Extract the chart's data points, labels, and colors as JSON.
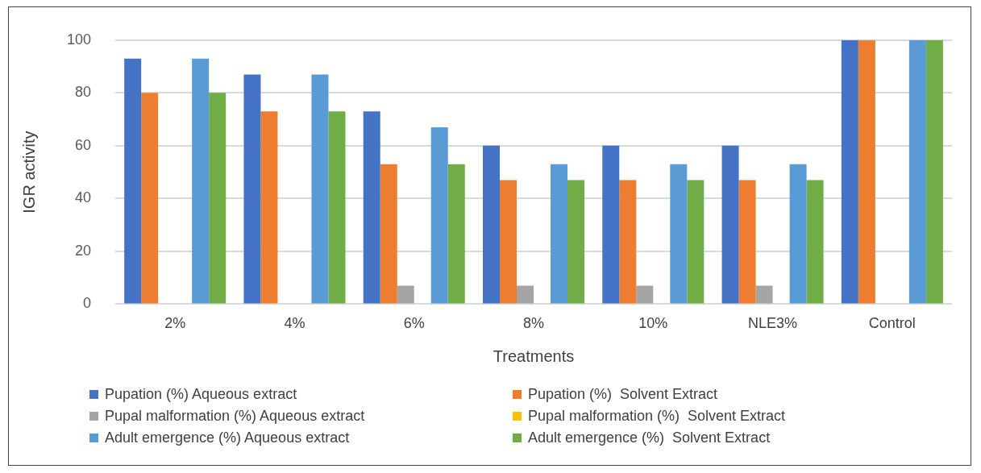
{
  "chart_data": {
    "type": "bar",
    "xlabel": "Treatments",
    "ylabel": "IGR activity",
    "categories": [
      "2%",
      "4%",
      "6%",
      "8%",
      "10%",
      "NLE3%",
      "Control"
    ],
    "series": [
      {
        "name": "Pupation (%) Aqueous extract",
        "color": "#4472c4",
        "values": [
          93,
          87,
          73,
          60,
          60,
          60,
          100
        ]
      },
      {
        "name": "Pupation (%)  Solvent Extract",
        "color": "#ed7d31",
        "values": [
          80,
          73,
          53,
          47,
          47,
          47,
          100
        ]
      },
      {
        "name": "Pupal malformation (%) Aqueous extract",
        "color": "#a5a5a5",
        "values": [
          0,
          0,
          7,
          7,
          7,
          7,
          0
        ]
      },
      {
        "name": "Pupal malformation (%)  Solvent Extract",
        "color": "#ffc000",
        "values": [
          0,
          0,
          0,
          0,
          0,
          0,
          0
        ]
      },
      {
        "name": "Adult emergence (%) Aqueous extract",
        "color": "#5b9bd5",
        "values": [
          93,
          87,
          67,
          53,
          53,
          53,
          100
        ]
      },
      {
        "name": "Adult emergence (%)  Solvent Extract",
        "color": "#70ad47",
        "values": [
          80,
          73,
          53,
          47,
          47,
          47,
          100
        ]
      }
    ],
    "ylim": [
      0,
      100
    ],
    "yticks": [
      0,
      20,
      40,
      60,
      80,
      100
    ],
    "grid": "y",
    "legend": "bottom"
  }
}
